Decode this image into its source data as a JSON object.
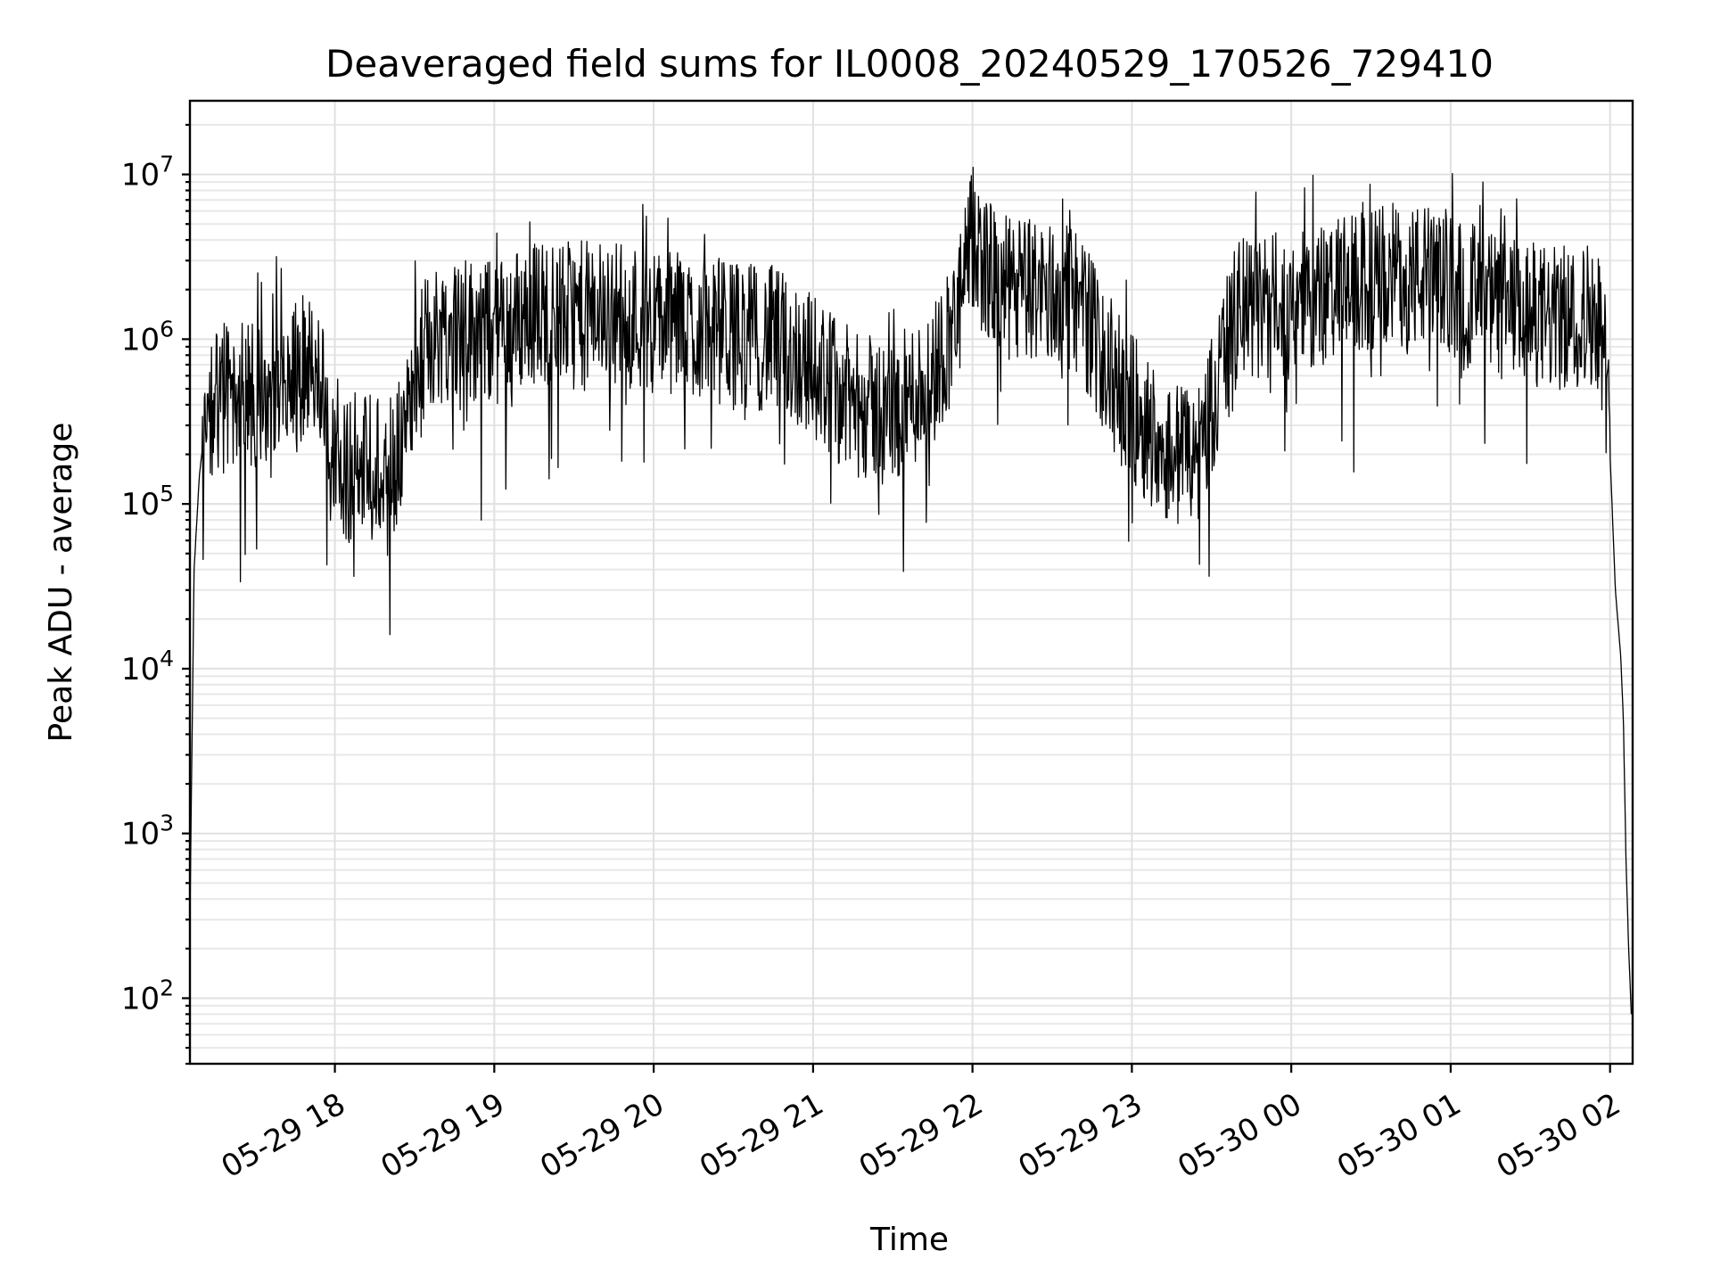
{
  "chart_data": {
    "type": "line",
    "title": "Deaveraged field sums for IL0008_20240529_170526_729410",
    "xlabel": "Time",
    "ylabel": "Peak ADU - average",
    "yscale": "log",
    "grid": true,
    "line_color": "#000000",
    "xlim": [
      "2024-05-29 17:05:26",
      "2024-05-30 02:08:30"
    ],
    "ylim": [
      40,
      28000000
    ],
    "x_ticks": [
      {
        "value": "2024-05-29 18:00",
        "label": "05-29 18"
      },
      {
        "value": "2024-05-29 19:00",
        "label": "05-29 19"
      },
      {
        "value": "2024-05-29 20:00",
        "label": "05-29 20"
      },
      {
        "value": "2024-05-29 21:00",
        "label": "05-29 21"
      },
      {
        "value": "2024-05-29 22:00",
        "label": "05-29 22"
      },
      {
        "value": "2024-05-29 23:00",
        "label": "05-29 23"
      },
      {
        "value": "2024-05-30 00:00",
        "label": "05-30 00"
      },
      {
        "value": "2024-05-30 01:00",
        "label": "05-30 01"
      },
      {
        "value": "2024-05-30 02:00",
        "label": "05-30 02"
      }
    ],
    "y_ticks": [
      {
        "value": 100,
        "base": "10",
        "exp": "2"
      },
      {
        "value": 1000,
        "base": "10",
        "exp": "3"
      },
      {
        "value": 10000,
        "base": "10",
        "exp": "4"
      },
      {
        "value": 100000,
        "base": "10",
        "exp": "5"
      },
      {
        "value": 1000000,
        "base": "10",
        "exp": "6"
      },
      {
        "value": 10000000,
        "base": "10",
        "exp": "7"
      }
    ],
    "series": [
      {
        "x": [
          "2024-05-29 17:05:26",
          "2024-05-29 17:07",
          "2024-05-29 17:09",
          "2024-05-29 17:12",
          "2024-05-29 17:20",
          "2024-05-29 17:30",
          "2024-05-29 17:40",
          "2024-05-29 17:50",
          "2024-05-29 17:55",
          "2024-05-29 17:58",
          "2024-05-29 18:02",
          "2024-05-29 18:10",
          "2024-05-29 18:20",
          "2024-05-29 18:25",
          "2024-05-29 18:35",
          "2024-05-29 18:45",
          "2024-05-29 19:00",
          "2024-05-29 19:15",
          "2024-05-29 19:30",
          "2024-05-29 19:45",
          "2024-05-29 20:00",
          "2024-05-29 20:15",
          "2024-05-29 20:30",
          "2024-05-29 20:45",
          "2024-05-29 21:00",
          "2024-05-29 21:15",
          "2024-05-29 21:30",
          "2024-05-29 21:45",
          "2024-05-29 21:55",
          "2024-05-29 22:00",
          "2024-05-29 22:10",
          "2024-05-29 22:25",
          "2024-05-29 22:40",
          "2024-05-29 22:55",
          "2024-05-29 23:05",
          "2024-05-29 23:15",
          "2024-05-29 23:25",
          "2024-05-29 23:40",
          "2024-05-30 00:00",
          "2024-05-30 00:20",
          "2024-05-30 00:40",
          "2024-05-30 01:00",
          "2024-05-30 01:20",
          "2024-05-30 01:40",
          "2024-05-30 01:55",
          "2024-05-30 01:58",
          "2024-05-30 02:00",
          "2024-05-30 02:02",
          "2024-05-30 02:04",
          "2024-05-30 02:05",
          "2024-05-30 02:06",
          "2024-05-30 02:07",
          "2024-05-30 02:08"
        ],
        "y": [
          300,
          40000,
          150000,
          400000,
          500000,
          450000,
          500000,
          700000,
          600000,
          200000,
          150000,
          180000,
          150000,
          250000,
          1000000,
          1200000,
          1100000,
          1500000,
          1400000,
          1500000,
          1300000,
          1200000,
          1100000,
          1000000,
          700000,
          400000,
          350000,
          600000,
          1500000,
          4000000,
          2000000,
          2000000,
          1700000,
          500000,
          300000,
          200000,
          200000,
          1500000,
          1600000,
          2000000,
          2500000,
          2200000,
          1500000,
          1300000,
          1500000,
          800000,
          200000,
          30000,
          12000,
          5000,
          700,
          200,
          80
        ]
      }
    ]
  }
}
